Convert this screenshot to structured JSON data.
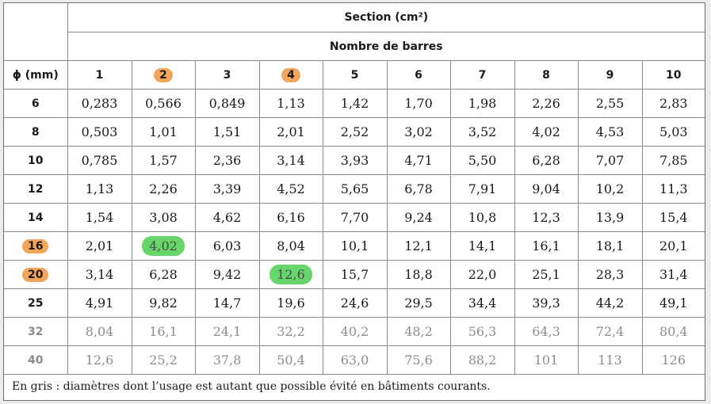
{
  "header": {
    "section": "Section (cm²)",
    "nombre": "Nombre de barres",
    "diameter": "ϕ (mm)",
    "counts": [
      "1",
      "2",
      "3",
      "4",
      "5",
      "6",
      "7",
      "8",
      "9",
      "10"
    ]
  },
  "highlight": {
    "orange": "#f4a55c",
    "green": "#66d66a",
    "grey_text": "#8c8c8c",
    "highlighted_columns": [
      "2",
      "4"
    ],
    "highlighted_diameters": [
      "16",
      "20"
    ]
  },
  "rows": [
    {
      "d": "6",
      "v": [
        "0,283",
        "0,566",
        "0,849",
        "1,13",
        "1,42",
        "1,70",
        "1,98",
        "2,26",
        "2,55",
        "2,83"
      ]
    },
    {
      "d": "8",
      "v": [
        "0,503",
        "1,01",
        "1,51",
        "2,01",
        "2,52",
        "3,02",
        "3,52",
        "4,02",
        "4,53",
        "5,03"
      ]
    },
    {
      "d": "10",
      "v": [
        "0,785",
        "1,57",
        "2,36",
        "3,14",
        "3,93",
        "4,71",
        "5,50",
        "6,28",
        "7,07",
        "7,85"
      ]
    },
    {
      "d": "12",
      "v": [
        "1,13",
        "2,26",
        "3,39",
        "4,52",
        "5,65",
        "6,78",
        "7,91",
        "9,04",
        "10,2",
        "11,3"
      ]
    },
    {
      "d": "14",
      "v": [
        "1,54",
        "3,08",
        "4,62",
        "6,16",
        "7,70",
        "9,24",
        "10,8",
        "12,3",
        "13,9",
        "15,4"
      ]
    },
    {
      "d": "16",
      "v": [
        "2,01",
        "4,02",
        "6,03",
        "8,04",
        "10,1",
        "12,1",
        "14,1",
        "16,1",
        "18,1",
        "20,1"
      ]
    },
    {
      "d": "20",
      "v": [
        "3,14",
        "6,28",
        "9,42",
        "12,6",
        "15,7",
        "18,8",
        "22,0",
        "25,1",
        "28,3",
        "31,4"
      ]
    },
    {
      "d": "25",
      "v": [
        "4,91",
        "9,82",
        "14,7",
        "19,6",
        "24,6",
        "29,5",
        "34,4",
        "39,3",
        "44,2",
        "49,1"
      ]
    },
    {
      "d": "32",
      "v": [
        "8,04",
        "16,1",
        "24,1",
        "32,2",
        "40,2",
        "48,2",
        "56,3",
        "64,3",
        "72,4",
        "80,4"
      ]
    },
    {
      "d": "40",
      "v": [
        "12,6",
        "25,2",
        "37,8",
        "50,4",
        "63,0",
        "75,6",
        "88,2",
        "101",
        "113",
        "126"
      ]
    }
  ],
  "note": "En gris : diamètres dont l’usage est autant que possible évité en bâtiments courants."
}
